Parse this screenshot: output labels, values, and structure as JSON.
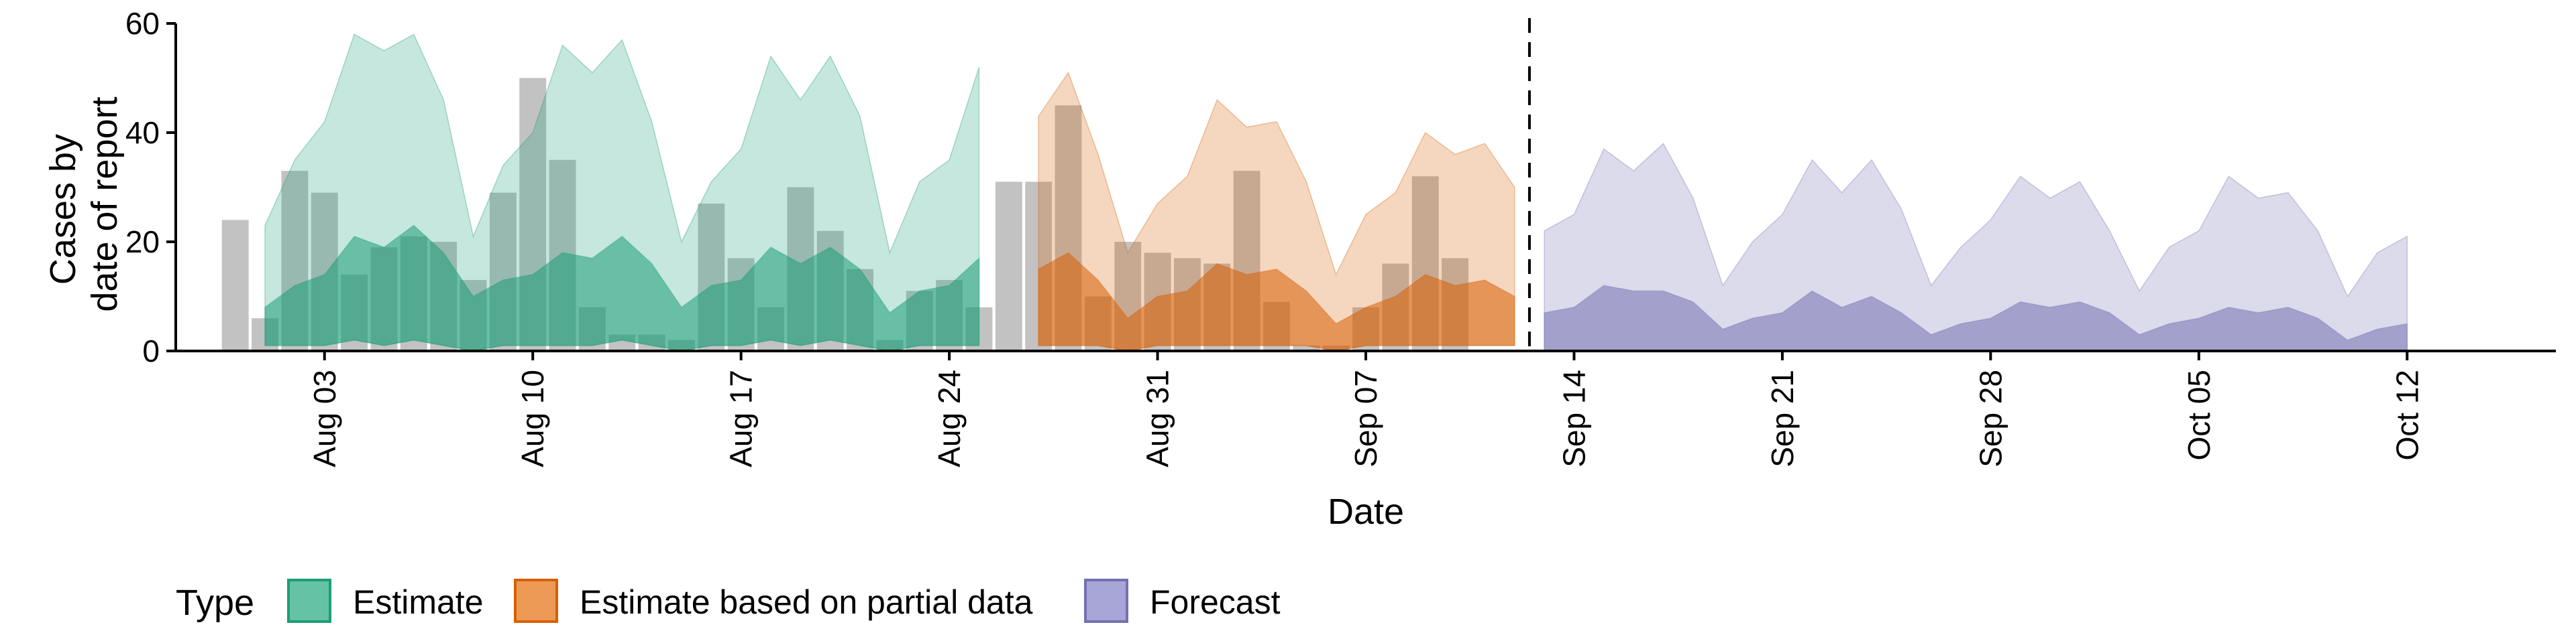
{
  "chart_data": {
    "type": "area",
    "xlabel": "Date",
    "ylabel_lines": [
      "Cases by",
      "date of report"
    ],
    "ylim": [
      0,
      60
    ],
    "yticks": [
      "0",
      "20",
      "40",
      "60"
    ],
    "xlim": [
      "2020-07-29",
      "2020-10-17"
    ],
    "xticks": [
      {
        "date": "2020-08-03",
        "label": "Aug 03"
      },
      {
        "date": "2020-08-10",
        "label": "Aug 10"
      },
      {
        "date": "2020-08-17",
        "label": "Aug 17"
      },
      {
        "date": "2020-08-24",
        "label": "Aug 24"
      },
      {
        "date": "2020-08-31",
        "label": "Aug 31"
      },
      {
        "date": "2020-09-07",
        "label": "Sep 07"
      },
      {
        "date": "2020-09-14",
        "label": "Sep 14"
      },
      {
        "date": "2020-09-21",
        "label": "Sep 21"
      },
      {
        "date": "2020-09-28",
        "label": "Sep 28"
      },
      {
        "date": "2020-10-05",
        "label": "Oct 05"
      },
      {
        "date": "2020-10-12",
        "label": "Oct 12"
      }
    ],
    "forecast_start": "2020-09-13",
    "observed_cases": {
      "start": "2020-07-31",
      "values": [
        24,
        6,
        33,
        29,
        14,
        19,
        21,
        20,
        13,
        29,
        50,
        35,
        8,
        3,
        3,
        2,
        27,
        17,
        8,
        30,
        22,
        15,
        2,
        11,
        13,
        8,
        31,
        31,
        45,
        10,
        20,
        18,
        17,
        16,
        33,
        9,
        1,
        1,
        8,
        16,
        32,
        17
      ]
    },
    "series": [
      {
        "name": "Estimate",
        "color": "#1B9E77",
        "start": "2020-08-01",
        "upper": [
          23,
          35,
          42,
          58,
          55,
          58,
          46,
          21,
          34,
          40,
          56,
          51,
          57,
          42,
          20,
          31,
          37,
          54,
          46,
          54,
          43,
          18,
          31,
          35,
          52
        ],
        "mid": [
          8,
          12,
          14,
          21,
          19,
          23,
          18,
          10,
          13,
          14,
          18,
          17,
          21,
          16,
          8,
          12,
          13,
          19,
          16,
          19,
          15,
          7,
          11,
          12,
          17
        ],
        "lower": [
          1,
          1,
          1,
          2,
          1,
          2,
          1,
          0,
          1,
          1,
          1,
          1,
          2,
          1,
          0,
          1,
          1,
          2,
          1,
          2,
          1,
          0,
          1,
          1,
          1
        ]
      },
      {
        "name": "Estimate based on partial data",
        "color": "#D95F02",
        "start": "2020-08-27",
        "upper": [
          43,
          51,
          36,
          18,
          27,
          32,
          46,
          41,
          42,
          31,
          14,
          25,
          29,
          40,
          36,
          38,
          30
        ],
        "mid": [
          15,
          18,
          13,
          6,
          10,
          11,
          16,
          14,
          15,
          11,
          5,
          8,
          10,
          14,
          12,
          13,
          10
        ],
        "lower": [
          1,
          1,
          1,
          0,
          1,
          1,
          1,
          1,
          1,
          1,
          0,
          1,
          1,
          1,
          1,
          1,
          1
        ]
      },
      {
        "name": "Forecast",
        "color": "#7570B3",
        "start": "2020-09-13",
        "upper": [
          22,
          25,
          37,
          33,
          38,
          28,
          12,
          20,
          25,
          35,
          29,
          35,
          26,
          12,
          19,
          24,
          32,
          28,
          31,
          22,
          11,
          19,
          22,
          32,
          28,
          29,
          22,
          10,
          18,
          21
        ],
        "mid": [
          7,
          8,
          12,
          11,
          11,
          9,
          4,
          6,
          7,
          11,
          8,
          10,
          7,
          3,
          5,
          6,
          9,
          8,
          9,
          7,
          3,
          5,
          6,
          8,
          7,
          8,
          6,
          2,
          4,
          5
        ],
        "lower": []
      }
    ],
    "legend": {
      "position": "bottom-left",
      "title": "Type",
      "items": [
        {
          "label": "Estimate",
          "fill": "#66C2A5",
          "stroke": "#1B9E77"
        },
        {
          "label": "Estimate based on partial data",
          "fill": "#EE9A57",
          "stroke": "#D95F02"
        },
        {
          "label": "Forecast",
          "fill": "#A8A6D6",
          "stroke": "#7570B3"
        }
      ]
    }
  }
}
